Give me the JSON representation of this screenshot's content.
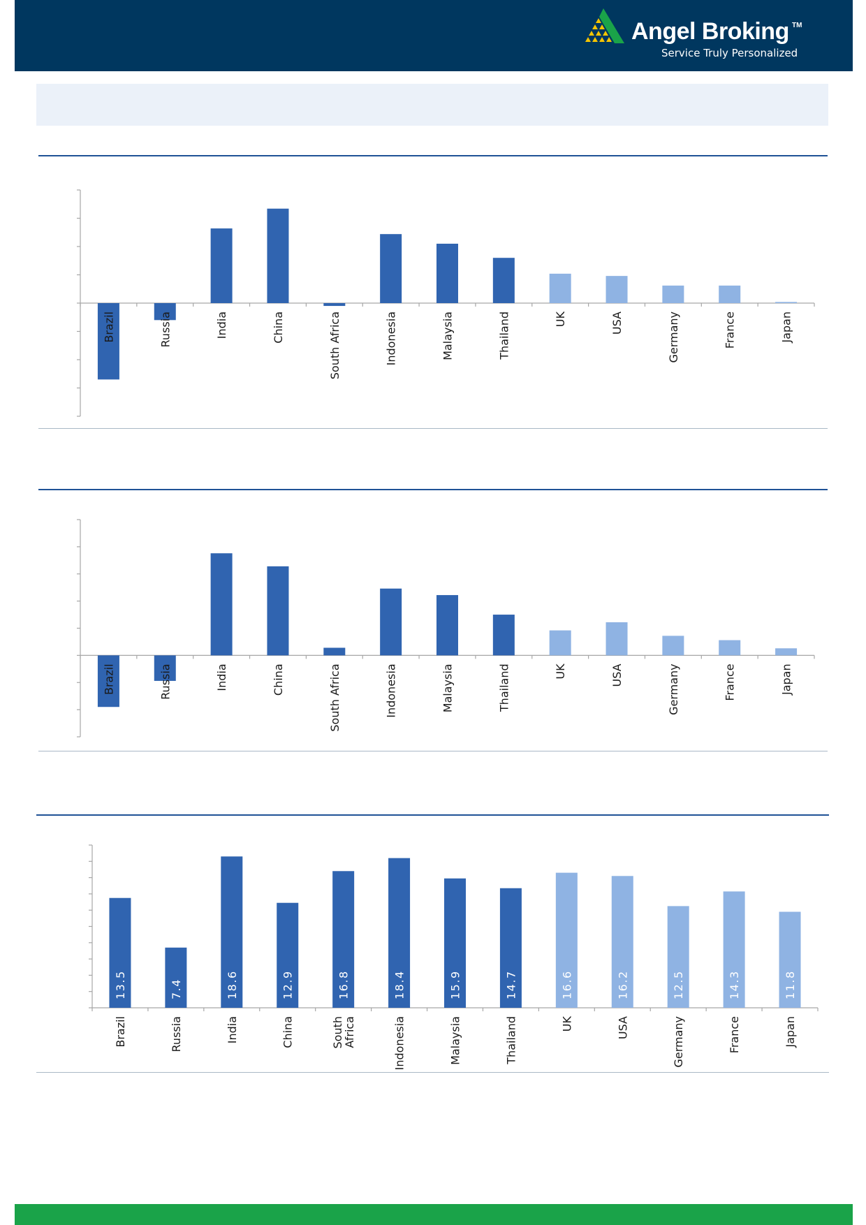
{
  "brand": {
    "name": "Angel Broking",
    "trademark": "TM",
    "tagline": "Service Truly Personalized",
    "colors": {
      "header": "#00375f",
      "footer": "#1aa349",
      "logo_green": "#1aa349",
      "logo_yellow": "#f5c400"
    }
  },
  "colors": {
    "emerging": "#3064b0",
    "developed": "#8fb3e3",
    "axis": "#a6a6a6",
    "rule": "#1f5296"
  },
  "chart_data": [
    {
      "type": "bar",
      "title": "",
      "xlabel": "",
      "ylabel": "",
      "categories": [
        "Brazil",
        "Russia",
        "India",
        "China",
        "South Africa",
        "Indonesia",
        "Malaysia",
        "Thailand",
        "UK",
        "USA",
        "Germany",
        "France",
        "Japan"
      ],
      "values": [
        -13.5,
        -3.0,
        13.2,
        16.7,
        -0.5,
        12.2,
        10.5,
        8.0,
        5.2,
        4.8,
        3.1,
        3.1,
        0.2
      ],
      "groups": [
        "emerging",
        "emerging",
        "emerging",
        "emerging",
        "emerging",
        "emerging",
        "emerging",
        "emerging",
        "developed",
        "developed",
        "developed",
        "developed",
        "developed"
      ],
      "ylim": [
        -20,
        20
      ],
      "ytick_count": 8,
      "grid": false
    },
    {
      "type": "bar",
      "title": "",
      "xlabel": "",
      "ylabel": "",
      "categories": [
        "Brazil",
        "Russia",
        "India",
        "China",
        "South Africa",
        "Indonesia",
        "Malaysia",
        "Thailand",
        "UK",
        "USA",
        "Germany",
        "France",
        "Japan"
      ],
      "values": [
        -9.5,
        -4.7,
        18.8,
        16.4,
        1.4,
        12.3,
        11.1,
        7.5,
        4.6,
        6.1,
        3.6,
        2.8,
        1.3
      ],
      "groups": [
        "emerging",
        "emerging",
        "emerging",
        "emerging",
        "emerging",
        "emerging",
        "emerging",
        "emerging",
        "developed",
        "developed",
        "developed",
        "developed",
        "developed"
      ],
      "ylim": [
        -15,
        25
      ],
      "ytick_count": 8,
      "grid": false
    },
    {
      "type": "bar",
      "title": "",
      "xlabel": "",
      "ylabel": "",
      "categories": [
        "Brazil",
        "Russia",
        "India",
        "China",
        "South Africa",
        "Indonesia",
        "Malaysia",
        "Thailand",
        "UK",
        "USA",
        "Germany",
        "France",
        "Japan"
      ],
      "category_lines": [
        [
          "Brazil"
        ],
        [
          "Russia"
        ],
        [
          "India"
        ],
        [
          "China"
        ],
        [
          "South",
          "Africa"
        ],
        [
          "Indonesia"
        ],
        [
          "Malaysia"
        ],
        [
          "Thailand"
        ],
        [
          "UK"
        ],
        [
          "USA"
        ],
        [
          "Germany"
        ],
        [
          "France"
        ],
        [
          "Japan"
        ]
      ],
      "values": [
        13.5,
        7.4,
        18.6,
        12.9,
        16.8,
        18.4,
        15.9,
        14.7,
        16.6,
        16.2,
        12.5,
        14.3,
        11.8
      ],
      "labels": [
        "13.5",
        "7.4",
        "18.6",
        "12.9",
        "16.8",
        "18.4",
        "15.9",
        "14.7",
        "16.6",
        "16.2",
        "12.5",
        "14.3",
        "11.8"
      ],
      "groups": [
        "emerging",
        "emerging",
        "emerging",
        "emerging",
        "emerging",
        "emerging",
        "emerging",
        "emerging",
        "developed",
        "developed",
        "developed",
        "developed",
        "developed"
      ],
      "ylim": [
        0,
        20
      ],
      "ytick_count": 10,
      "grid": false
    }
  ]
}
